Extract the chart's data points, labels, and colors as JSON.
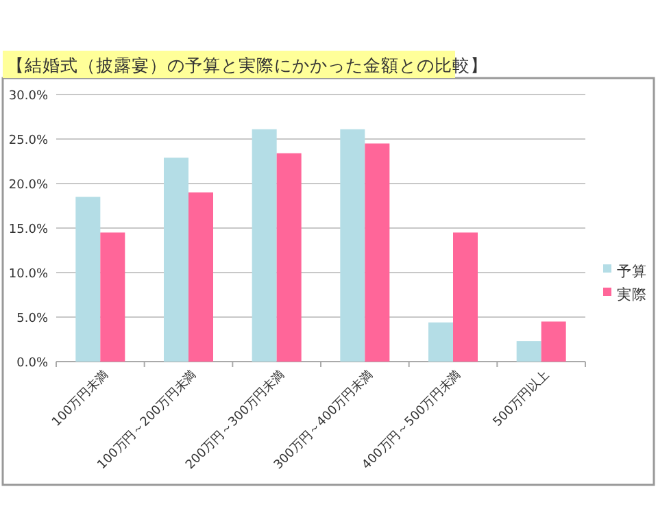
{
  "chart_data": {
    "type": "bar",
    "title": "【結婚式（披露宴）の予算と実際にかかった金額との比較】",
    "categories": [
      "100万円未満",
      "100万円～200万円未満",
      "200万円～300万円未満",
      "300万円～400万円未満",
      "400万円～500万円未満",
      "500万円以上"
    ],
    "series": [
      {
        "name": "予算",
        "color": "#b4dde6",
        "values": [
          18.5,
          22.9,
          26.1,
          26.1,
          4.4,
          2.3
        ]
      },
      {
        "name": "実際",
        "color": "#ff6699",
        "values": [
          14.5,
          19.0,
          23.4,
          24.5,
          14.5,
          4.5
        ]
      }
    ],
    "ylim": [
      0,
      30
    ],
    "yticks": [
      {
        "value": 0,
        "label": "0.0%"
      },
      {
        "value": 5,
        "label": "5.0%"
      },
      {
        "value": 10,
        "label": "10.0%"
      },
      {
        "value": 15,
        "label": "15.0%"
      },
      {
        "value": 20,
        "label": "20.0%"
      },
      {
        "value": 25,
        "label": "25.0%"
      },
      {
        "value": 30,
        "label": "30.0%"
      }
    ],
    "grid": "y",
    "legend": "right"
  }
}
